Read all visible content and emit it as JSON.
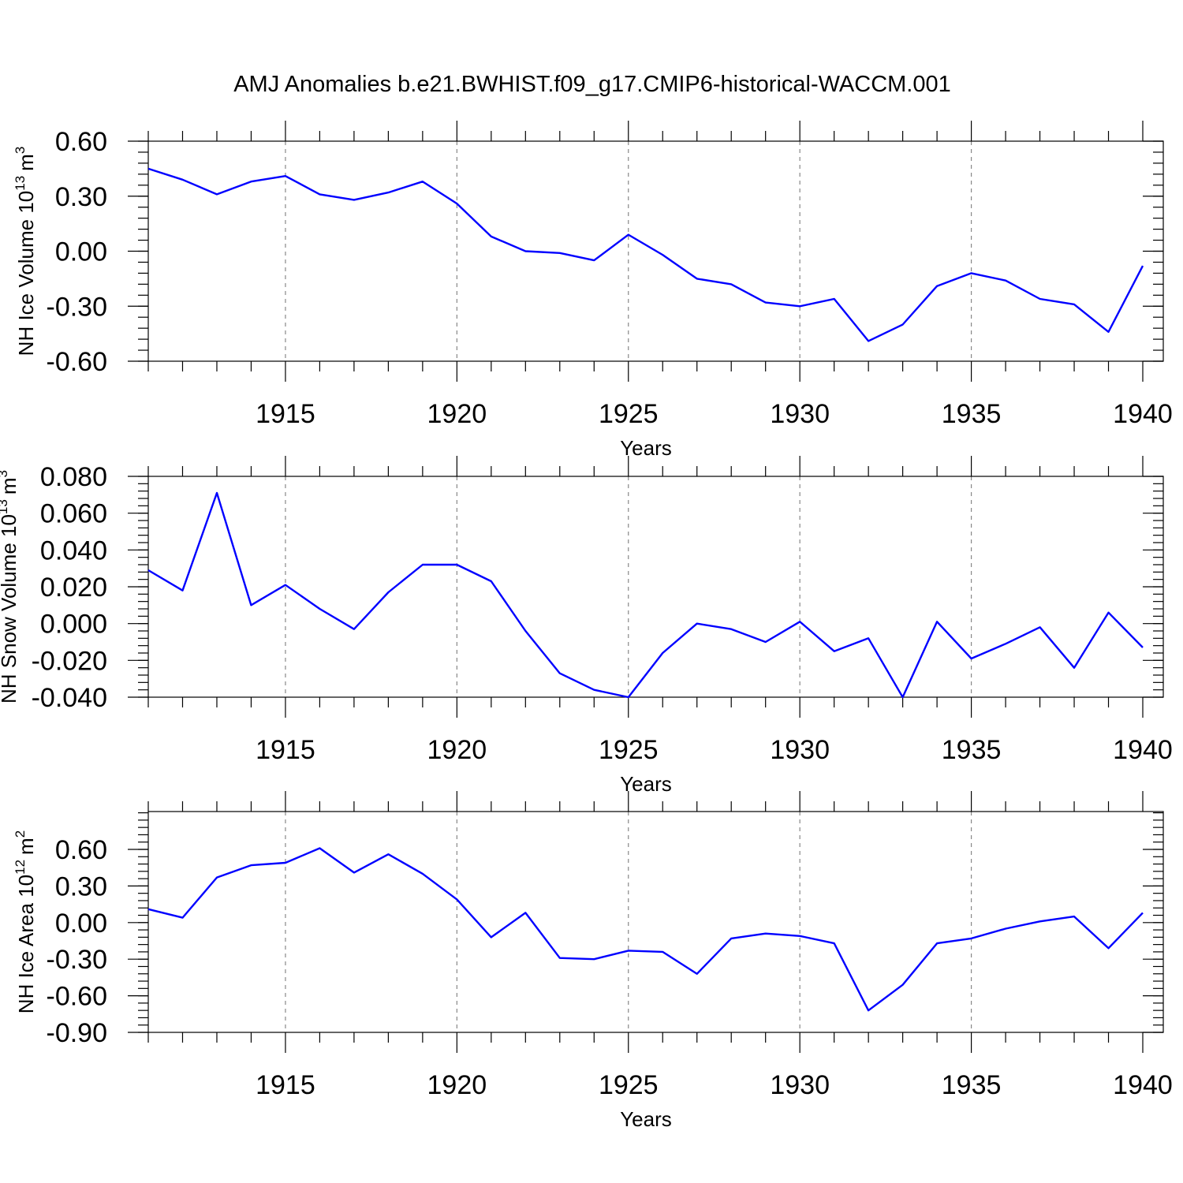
{
  "title": "AMJ Anomalies b.e21.BWHIST.f09_g17.CMIP6-historical-WACCM.001",
  "colors": {
    "series": "#0000ff",
    "axis": "#000000",
    "grid": "#888888"
  },
  "chart_data": [
    {
      "type": "line",
      "xlabel": "Years",
      "ylabel": {
        "text": "NH Ice Volume 10",
        "exp": "13",
        "unit": "m",
        "unit_exp": "3"
      },
      "xlim": [
        1911,
        1940
      ],
      "ylim": [
        -0.6,
        0.6
      ],
      "yticks": [
        "0.60",
        "0.30",
        "0.00",
        "-0.30",
        "-0.60"
      ],
      "xticks": [
        "1915",
        "1920",
        "1925",
        "1930",
        "1935",
        "1940"
      ],
      "grid": "vertical dashed lines at major x ticks",
      "x": [
        1911,
        1912,
        1913,
        1914,
        1915,
        1916,
        1917,
        1918,
        1919,
        1920,
        1921,
        1922,
        1923,
        1924,
        1925,
        1926,
        1927,
        1928,
        1929,
        1930,
        1931,
        1932,
        1933,
        1934,
        1935,
        1936,
        1937,
        1938,
        1939,
        1940
      ],
      "values": [
        0.45,
        0.39,
        0.31,
        0.38,
        0.41,
        0.31,
        0.28,
        0.32,
        0.38,
        0.26,
        0.08,
        0.0,
        -0.01,
        -0.05,
        0.09,
        -0.02,
        -0.15,
        -0.18,
        -0.28,
        -0.3,
        -0.26,
        -0.49,
        -0.4,
        -0.19,
        -0.12,
        -0.16,
        -0.26,
        -0.29,
        -0.44,
        -0.08
      ]
    },
    {
      "type": "line",
      "xlabel": "Years",
      "ylabel": {
        "text": "NH Snow Volume 10",
        "exp": "13",
        "unit": "m",
        "unit_exp": "3"
      },
      "xlim": [
        1911,
        1940
      ],
      "ylim": [
        -0.04,
        0.08
      ],
      "yticks": [
        "0.080",
        "0.060",
        "0.040",
        "0.020",
        "0.000",
        "-0.020",
        "-0.040"
      ],
      "xticks": [
        "1915",
        "1920",
        "1925",
        "1930",
        "1935",
        "1940"
      ],
      "grid": "vertical dashed lines at major x ticks",
      "x": [
        1911,
        1912,
        1913,
        1914,
        1915,
        1916,
        1917,
        1918,
        1919,
        1920,
        1921,
        1922,
        1923,
        1924,
        1925,
        1926,
        1927,
        1928,
        1929,
        1930,
        1931,
        1932,
        1933,
        1934,
        1935,
        1936,
        1937,
        1938,
        1939,
        1940
      ],
      "values": [
        0.029,
        0.018,
        0.071,
        0.01,
        0.021,
        0.008,
        -0.003,
        0.017,
        0.032,
        0.032,
        0.023,
        -0.004,
        -0.027,
        -0.036,
        -0.04,
        -0.016,
        0.0,
        -0.003,
        -0.01,
        0.001,
        -0.015,
        -0.008,
        -0.04,
        0.001,
        -0.019,
        -0.011,
        -0.002,
        -0.024,
        0.006,
        -0.013
      ]
    },
    {
      "type": "line",
      "xlabel": "Years",
      "ylabel": {
        "text": "NH Ice Area 10",
        "exp": "12",
        "unit": "m",
        "unit_exp": "2"
      },
      "xlim": [
        1911,
        1940
      ],
      "ylim": [
        -0.9,
        0.9
      ],
      "yticks": [
        "0.60",
        "0.30",
        "0.00",
        "-0.30",
        "-0.60",
        "-0.90"
      ],
      "ytick_values": [
        0.6,
        0.3,
        0.0,
        -0.3,
        -0.6,
        -0.9
      ],
      "xticks": [
        "1915",
        "1920",
        "1925",
        "1930",
        "1935",
        "1940"
      ],
      "grid": "vertical dashed lines at major x ticks",
      "x": [
        1911,
        1912,
        1913,
        1914,
        1915,
        1916,
        1917,
        1918,
        1919,
        1920,
        1921,
        1922,
        1923,
        1924,
        1925,
        1926,
        1927,
        1928,
        1929,
        1930,
        1931,
        1932,
        1933,
        1934,
        1935,
        1936,
        1937,
        1938,
        1939,
        1940
      ],
      "values": [
        0.11,
        0.04,
        0.37,
        0.47,
        0.49,
        0.61,
        0.41,
        0.56,
        0.4,
        0.19,
        -0.12,
        0.08,
        -0.29,
        -0.3,
        -0.23,
        -0.24,
        -0.42,
        -0.13,
        -0.09,
        -0.11,
        -0.17,
        -0.72,
        -0.51,
        -0.17,
        -0.13,
        -0.05,
        0.01,
        0.05,
        -0.21,
        0.08
      ]
    }
  ]
}
